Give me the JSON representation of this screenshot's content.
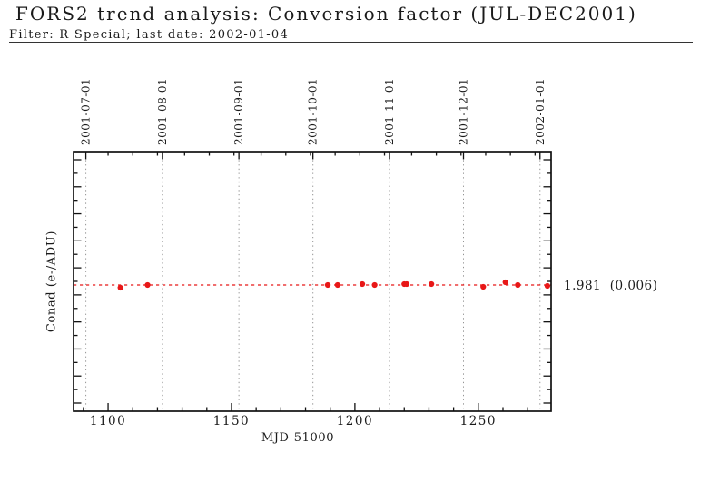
{
  "header": {
    "title": "FORS2 trend analysis: Conversion factor (JUL-DEC2001)",
    "subtitle": "Filter: R Special; last date: 2002-01-04"
  },
  "chart_data": {
    "type": "scatter",
    "title": "FORS2 trend analysis: Conversion factor (JUL-DEC2001)",
    "xlabel": "MJD-51000",
    "ylabel": "Conad (e-/ADU)",
    "xlim": [
      1086,
      1279.5
    ],
    "grid": "vertical dotted lines at month starts",
    "legend": "none",
    "x_ticks_major": [
      1100,
      1150,
      1200,
      1250
    ],
    "x_tick_labels": [
      "1100",
      "1150",
      "1200",
      "1250"
    ],
    "x_ticks_minor": [
      1090,
      1110,
      1120,
      1130,
      1140,
      1160,
      1170,
      1180,
      1190,
      1210,
      1220,
      1230,
      1240,
      1260,
      1270
    ],
    "top_axis": {
      "tick_values": [
        1091,
        1122,
        1153,
        1183,
        1214,
        1244,
        1275
      ],
      "tick_labels": [
        "2001-07-01",
        "2001-08-01",
        "2001-09-01",
        "2001-10-01",
        "2001-11-01",
        "2001-12-01",
        "2002-01-01"
      ],
      "minor_tick_values": [
        1100,
        1110,
        1120,
        1131,
        1141,
        1151,
        1162,
        1172,
        1182,
        1192,
        1202,
        1212,
        1223,
        1233,
        1243,
        1253,
        1263,
        1273
      ]
    },
    "mean_line": {
      "value": 1.981,
      "rms": 0.006,
      "label": "1.981  (0.006)",
      "color": "#e81717"
    },
    "series": [
      {
        "name": "conversion factor",
        "color": "#e81717",
        "points": [
          {
            "x": 1105,
            "y": 1.972
          },
          {
            "x": 1116,
            "y": 1.981
          },
          {
            "x": 1189,
            "y": 1.981
          },
          {
            "x": 1193,
            "y": 1.981
          },
          {
            "x": 1203,
            "y": 1.984
          },
          {
            "x": 1208,
            "y": 1.981
          },
          {
            "x": 1220,
            "y": 1.984
          },
          {
            "x": 1221,
            "y": 1.984
          },
          {
            "x": 1231,
            "y": 1.984
          },
          {
            "x": 1252,
            "y": 1.975
          },
          {
            "x": 1261,
            "y": 1.99
          },
          {
            "x": 1266,
            "y": 1.981
          },
          {
            "x": 1278,
            "y": 1.978
          }
        ]
      }
    ]
  }
}
